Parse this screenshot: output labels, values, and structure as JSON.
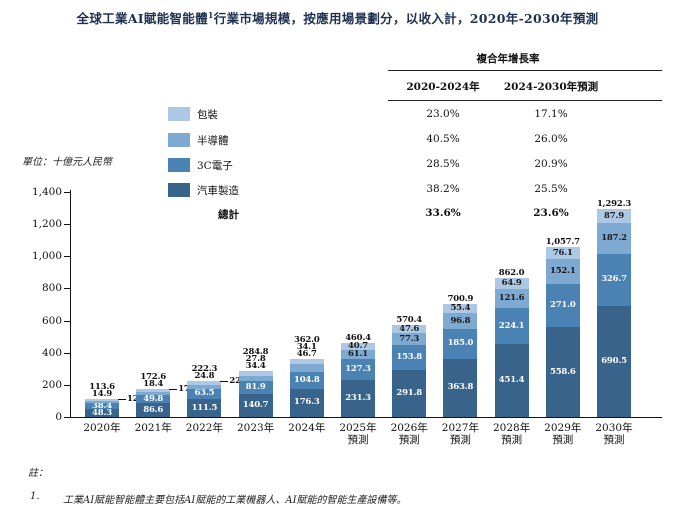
{
  "title": {
    "pre": "全球工業AI賦能智能體",
    "sup": "1",
    "post": "行業市場規模，按應用場景劃分，以收入計，2020年-2030年預測"
  },
  "unit_label": "單位：十億元人民幣",
  "legend": {
    "items": [
      {
        "label": "包裝",
        "color": "#adc8e4"
      },
      {
        "label": "半導體",
        "color": "#7ea9d1"
      },
      {
        "label": "3C電子",
        "color": "#4a82b4"
      },
      {
        "label": "汽車製造",
        "color": "#38648c"
      }
    ],
    "total_label": "總計"
  },
  "cagr_table": {
    "title": "複合年增長率",
    "columns": [
      "2020-2024年",
      "2024-2030年預測"
    ],
    "rows": [
      [
        "23.0%",
        "17.1%"
      ],
      [
        "40.5%",
        "26.0%"
      ],
      [
        "28.5%",
        "20.9%"
      ],
      [
        "38.2%",
        "25.5%"
      ]
    ],
    "total_row": [
      "33.6%",
      "23.6%"
    ]
  },
  "chart_data": {
    "type": "bar",
    "stacked": true,
    "title": "全球工業AI賦能智能體行業市場規模",
    "ylabel": "十億元人民幣",
    "ylim": [
      0,
      1400
    ],
    "yticks": [
      "0",
      "200",
      "400",
      "600",
      "800",
      "1,000",
      "1,200",
      "1,400"
    ],
    "grid": false,
    "legend_position": "upper-left",
    "categories": [
      [
        "2020年"
      ],
      [
        "2021年"
      ],
      [
        "2022年"
      ],
      [
        "2023年"
      ],
      [
        "2024年"
      ],
      [
        "2025年",
        "預測"
      ],
      [
        "2026年",
        "預測"
      ],
      [
        "2027年",
        "預測"
      ],
      [
        "2028年",
        "預測"
      ],
      [
        "2029年",
        "預測"
      ],
      [
        "2030年",
        "預測"
      ]
    ],
    "series": [
      {
        "name": "汽車製造",
        "color": "#38648c",
        "values": [
          48.3,
          86.6,
          111.5,
          140.7,
          176.3,
          231.3,
          291.8,
          363.8,
          451.4,
          558.6,
          690.5
        ]
      },
      {
        "name": "3C電子",
        "color": "#4a82b4",
        "values": [
          38.4,
          49.8,
          63.5,
          81.9,
          104.8,
          127.3,
          153.8,
          185.0,
          224.1,
          271.0,
          326.7
        ]
      },
      {
        "name": "半導體",
        "color": "#7ea9d1",
        "values": [
          12.0,
          17.8,
          24.8,
          34.4,
          46.7,
          61.1,
          77.3,
          96.8,
          121.6,
          152.1,
          187.2
        ]
      },
      {
        "name": "包裝",
        "color": "#adc8e4",
        "values": [
          14.9,
          18.4,
          22.4,
          27.8,
          34.1,
          40.7,
          47.6,
          55.4,
          64.9,
          76.1,
          87.9
        ]
      }
    ],
    "totals": [
      113.6,
      172.6,
      222.3,
      284.8,
      362.0,
      460.4,
      570.4,
      700.9,
      862.0,
      1057.7,
      1292.3
    ],
    "total_labels": [
      "113.6",
      "172.6",
      "222.3",
      "284.8",
      "362.0",
      "460.4",
      "570.4",
      "700.9",
      "862.0",
      "1,057.7",
      "1,292.3"
    ],
    "label_layout": [
      {
        "above": [
          "14.9"
        ],
        "callout": "12.0",
        "inside_max": 1
      },
      {
        "above": [
          "18.4"
        ],
        "callout": "17.8",
        "inside_max": 1
      },
      {
        "above": [
          "24.8"
        ],
        "callout": "22.4",
        "inside_max": 1
      },
      {
        "above": [
          "27.8",
          "34.4"
        ],
        "inside_max": 1
      },
      {
        "above": [
          "34.1",
          "46.7"
        ],
        "inside_max": 1
      },
      {
        "above": [],
        "inside_max": 3
      },
      {
        "above": [],
        "inside_max": 3
      },
      {
        "above": [],
        "inside_max": 3
      },
      {
        "above": [],
        "inside_max": 3
      },
      {
        "above": [],
        "inside_max": 3
      },
      {
        "above": [],
        "inside_max": 3
      }
    ]
  },
  "notes": {
    "header": "註：",
    "items": [
      {
        "num": "1.",
        "text": "工業AI賦能智能體主要包括AI賦能的工業機器人、AI賦能的智能生產設備等。"
      }
    ]
  }
}
